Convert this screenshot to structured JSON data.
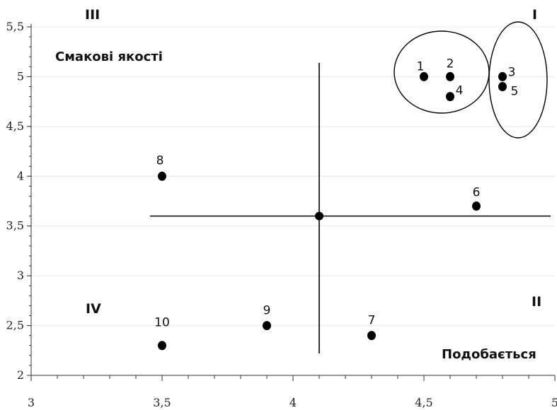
{
  "chart_data": {
    "type": "scatter",
    "title": "",
    "xlabel": "Подобається",
    "ylabel": "Смакові якості",
    "xlim": [
      3,
      5
    ],
    "ylim": [
      2,
      5.5
    ],
    "x_ticks": [
      "3",
      "3,5",
      "4",
      "4,5",
      "5"
    ],
    "y_ticks": [
      "2",
      "2,5",
      "3",
      "3,5",
      "4",
      "4,5",
      "5",
      "5,5"
    ],
    "x_tick_values": [
      3,
      3.5,
      4,
      4.5,
      5
    ],
    "y_tick_values": [
      2,
      2.5,
      3,
      3.5,
      4,
      4.5,
      5,
      5.5
    ],
    "grid": true,
    "points": [
      {
        "label": "1",
        "x": 4.5,
        "y": 5.0
      },
      {
        "label": "2",
        "x": 4.6,
        "y": 5.0
      },
      {
        "label": "3",
        "x": 4.8,
        "y": 5.0
      },
      {
        "label": "4",
        "x": 4.6,
        "y": 4.8
      },
      {
        "label": "5",
        "x": 4.8,
        "y": 4.9
      },
      {
        "label": "6",
        "x": 4.7,
        "y": 3.7
      },
      {
        "label": "7",
        "x": 4.3,
        "y": 2.4
      },
      {
        "label": "8",
        "x": 3.5,
        "y": 4.0
      },
      {
        "label": "9",
        "x": 3.9,
        "y": 2.5
      },
      {
        "label": "10",
        "x": 3.5,
        "y": 2.3
      }
    ],
    "center": {
      "x": 4.1,
      "y": 3.6
    },
    "quadrants": [
      "I",
      "II",
      "III",
      "IV"
    ],
    "clusters": [
      {
        "members": [
          "1",
          "2",
          "4"
        ]
      },
      {
        "members": [
          "3",
          "5"
        ]
      }
    ],
    "colors": {
      "point": "#000000",
      "axis": "#333333",
      "grid": "#e6e6e6"
    }
  }
}
